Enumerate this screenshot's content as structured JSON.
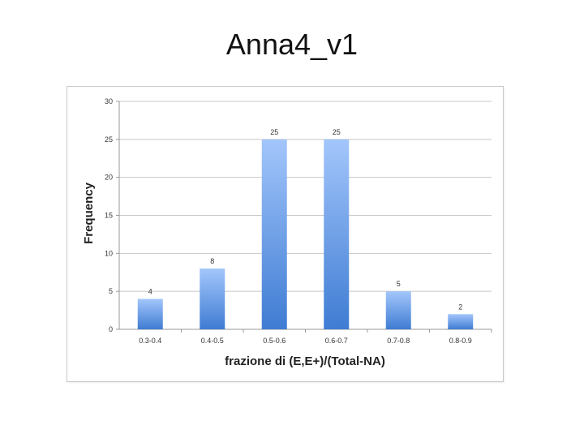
{
  "slide": {
    "title": "Anna4_v1"
  },
  "chart_data": {
    "type": "bar",
    "title": "",
    "xlabel": "frazione di (E,E+)/(Total-NA)",
    "ylabel": "Frequency",
    "categories": [
      "0.3-0.4",
      "0.4-0.5",
      "0.5-0.6",
      "0.6-0.7",
      "0.7-0.8",
      "0.8-0.9"
    ],
    "values": [
      4,
      8,
      25,
      25,
      5,
      2
    ],
    "ylim": [
      0,
      30
    ],
    "yticks": [
      0,
      5,
      10,
      15,
      20,
      25,
      30
    ],
    "grid": true,
    "legend": "none",
    "bar_color_top": "#a3c6fb",
    "bar_color_bottom": "#3f7cd3"
  }
}
